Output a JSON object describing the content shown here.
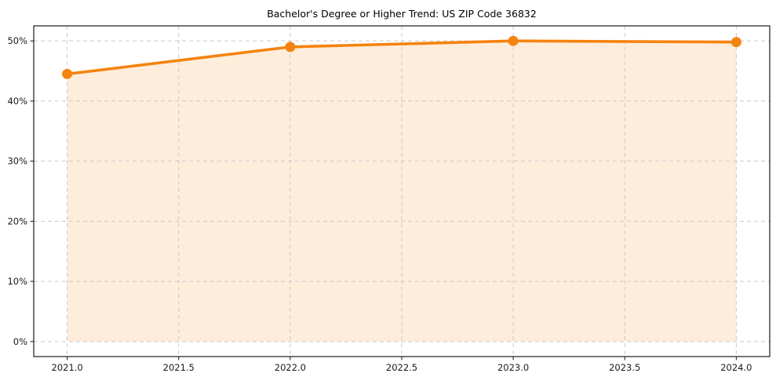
{
  "page": {
    "background": "#ffffff"
  },
  "chart_data": {
    "type": "line",
    "title": "Bachelor's Degree or Higher Trend: US ZIP Code 36832",
    "x": [
      2021.0,
      2022.0,
      2023.0,
      2024.0
    ],
    "values": [
      44.5,
      49.0,
      50.0,
      49.8
    ],
    "xlabel": "",
    "ylabel": "",
    "xlim": [
      2020.85,
      2024.15
    ],
    "ylim": [
      -2.5,
      52.5
    ],
    "xticks": {
      "values": [
        2021.0,
        2021.5,
        2022.0,
        2022.5,
        2023.0,
        2023.5,
        2024.0
      ],
      "labels": [
        "2021.0",
        "2021.5",
        "2022.0",
        "2022.5",
        "2023.0",
        "2023.5",
        "2024.0"
      ]
    },
    "yticks": {
      "values": [
        0,
        10,
        20,
        30,
        40,
        50
      ],
      "labels": [
        "0%",
        "10%",
        "20%",
        "30%",
        "40%",
        "50%"
      ]
    },
    "grid": true,
    "grid_style": "dashed",
    "legend": "none",
    "area_baseline": 0,
    "marker": "circle",
    "colors": {
      "line": "#f5830f",
      "marker": "#f5830f",
      "fill": "rgba(245, 131, 15, 0.15)",
      "grid": "#c9c9c9",
      "spine": "#1a1a1a",
      "tick": "#1a1a1a",
      "tick_label": "#1a1a1a",
      "title": "#000000"
    }
  }
}
